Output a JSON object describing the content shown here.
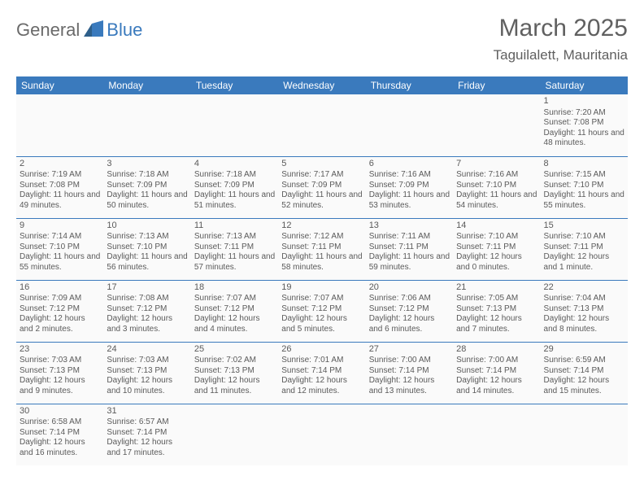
{
  "logo": {
    "text_left": "General",
    "text_right": "Blue"
  },
  "header": {
    "month_title": "March 2025",
    "location": "Taguilalett, Mauritania"
  },
  "colors": {
    "header_bg": "#3a7abd",
    "header_text": "#ffffff",
    "cell_text": "#5a5a5a",
    "rule": "#3a7abd",
    "page_bg": "#ffffff"
  },
  "day_headers": [
    "Sunday",
    "Monday",
    "Tuesday",
    "Wednesday",
    "Thursday",
    "Friday",
    "Saturday"
  ],
  "weeks": [
    [
      null,
      null,
      null,
      null,
      null,
      null,
      {
        "n": "1",
        "sunrise": "Sunrise: 7:20 AM",
        "sunset": "Sunset: 7:08 PM",
        "daylight": "Daylight: 11 hours and 48 minutes."
      }
    ],
    [
      {
        "n": "2",
        "sunrise": "Sunrise: 7:19 AM",
        "sunset": "Sunset: 7:08 PM",
        "daylight": "Daylight: 11 hours and 49 minutes."
      },
      {
        "n": "3",
        "sunrise": "Sunrise: 7:18 AM",
        "sunset": "Sunset: 7:09 PM",
        "daylight": "Daylight: 11 hours and 50 minutes."
      },
      {
        "n": "4",
        "sunrise": "Sunrise: 7:18 AM",
        "sunset": "Sunset: 7:09 PM",
        "daylight": "Daylight: 11 hours and 51 minutes."
      },
      {
        "n": "5",
        "sunrise": "Sunrise: 7:17 AM",
        "sunset": "Sunset: 7:09 PM",
        "daylight": "Daylight: 11 hours and 52 minutes."
      },
      {
        "n": "6",
        "sunrise": "Sunrise: 7:16 AM",
        "sunset": "Sunset: 7:09 PM",
        "daylight": "Daylight: 11 hours and 53 minutes."
      },
      {
        "n": "7",
        "sunrise": "Sunrise: 7:16 AM",
        "sunset": "Sunset: 7:10 PM",
        "daylight": "Daylight: 11 hours and 54 minutes."
      },
      {
        "n": "8",
        "sunrise": "Sunrise: 7:15 AM",
        "sunset": "Sunset: 7:10 PM",
        "daylight": "Daylight: 11 hours and 55 minutes."
      }
    ],
    [
      {
        "n": "9",
        "sunrise": "Sunrise: 7:14 AM",
        "sunset": "Sunset: 7:10 PM",
        "daylight": "Daylight: 11 hours and 55 minutes."
      },
      {
        "n": "10",
        "sunrise": "Sunrise: 7:13 AM",
        "sunset": "Sunset: 7:10 PM",
        "daylight": "Daylight: 11 hours and 56 minutes."
      },
      {
        "n": "11",
        "sunrise": "Sunrise: 7:13 AM",
        "sunset": "Sunset: 7:11 PM",
        "daylight": "Daylight: 11 hours and 57 minutes."
      },
      {
        "n": "12",
        "sunrise": "Sunrise: 7:12 AM",
        "sunset": "Sunset: 7:11 PM",
        "daylight": "Daylight: 11 hours and 58 minutes."
      },
      {
        "n": "13",
        "sunrise": "Sunrise: 7:11 AM",
        "sunset": "Sunset: 7:11 PM",
        "daylight": "Daylight: 11 hours and 59 minutes."
      },
      {
        "n": "14",
        "sunrise": "Sunrise: 7:10 AM",
        "sunset": "Sunset: 7:11 PM",
        "daylight": "Daylight: 12 hours and 0 minutes."
      },
      {
        "n": "15",
        "sunrise": "Sunrise: 7:10 AM",
        "sunset": "Sunset: 7:11 PM",
        "daylight": "Daylight: 12 hours and 1 minute."
      }
    ],
    [
      {
        "n": "16",
        "sunrise": "Sunrise: 7:09 AM",
        "sunset": "Sunset: 7:12 PM",
        "daylight": "Daylight: 12 hours and 2 minutes."
      },
      {
        "n": "17",
        "sunrise": "Sunrise: 7:08 AM",
        "sunset": "Sunset: 7:12 PM",
        "daylight": "Daylight: 12 hours and 3 minutes."
      },
      {
        "n": "18",
        "sunrise": "Sunrise: 7:07 AM",
        "sunset": "Sunset: 7:12 PM",
        "daylight": "Daylight: 12 hours and 4 minutes."
      },
      {
        "n": "19",
        "sunrise": "Sunrise: 7:07 AM",
        "sunset": "Sunset: 7:12 PM",
        "daylight": "Daylight: 12 hours and 5 minutes."
      },
      {
        "n": "20",
        "sunrise": "Sunrise: 7:06 AM",
        "sunset": "Sunset: 7:12 PM",
        "daylight": "Daylight: 12 hours and 6 minutes."
      },
      {
        "n": "21",
        "sunrise": "Sunrise: 7:05 AM",
        "sunset": "Sunset: 7:13 PM",
        "daylight": "Daylight: 12 hours and 7 minutes."
      },
      {
        "n": "22",
        "sunrise": "Sunrise: 7:04 AM",
        "sunset": "Sunset: 7:13 PM",
        "daylight": "Daylight: 12 hours and 8 minutes."
      }
    ],
    [
      {
        "n": "23",
        "sunrise": "Sunrise: 7:03 AM",
        "sunset": "Sunset: 7:13 PM",
        "daylight": "Daylight: 12 hours and 9 minutes."
      },
      {
        "n": "24",
        "sunrise": "Sunrise: 7:03 AM",
        "sunset": "Sunset: 7:13 PM",
        "daylight": "Daylight: 12 hours and 10 minutes."
      },
      {
        "n": "25",
        "sunrise": "Sunrise: 7:02 AM",
        "sunset": "Sunset: 7:13 PM",
        "daylight": "Daylight: 12 hours and 11 minutes."
      },
      {
        "n": "26",
        "sunrise": "Sunrise: 7:01 AM",
        "sunset": "Sunset: 7:14 PM",
        "daylight": "Daylight: 12 hours and 12 minutes."
      },
      {
        "n": "27",
        "sunrise": "Sunrise: 7:00 AM",
        "sunset": "Sunset: 7:14 PM",
        "daylight": "Daylight: 12 hours and 13 minutes."
      },
      {
        "n": "28",
        "sunrise": "Sunrise: 7:00 AM",
        "sunset": "Sunset: 7:14 PM",
        "daylight": "Daylight: 12 hours and 14 minutes."
      },
      {
        "n": "29",
        "sunrise": "Sunrise: 6:59 AM",
        "sunset": "Sunset: 7:14 PM",
        "daylight": "Daylight: 12 hours and 15 minutes."
      }
    ],
    [
      {
        "n": "30",
        "sunrise": "Sunrise: 6:58 AM",
        "sunset": "Sunset: 7:14 PM",
        "daylight": "Daylight: 12 hours and 16 minutes."
      },
      {
        "n": "31",
        "sunrise": "Sunrise: 6:57 AM",
        "sunset": "Sunset: 7:14 PM",
        "daylight": "Daylight: 12 hours and 17 minutes."
      },
      null,
      null,
      null,
      null,
      null
    ]
  ]
}
